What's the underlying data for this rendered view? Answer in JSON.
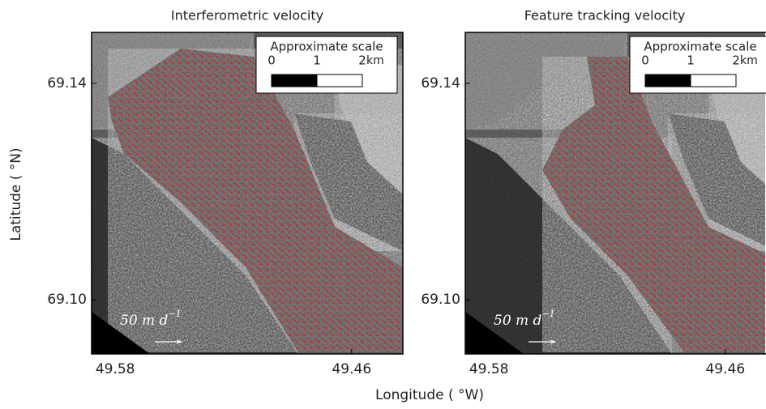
{
  "xlabel": "Longitude ( °W)",
  "ylabel": "Latitude ( °N)",
  "chart_data": [
    {
      "type": "image",
      "title": "Interferometric velocity",
      "xlim": [
        49.592,
        49.434
      ],
      "ylim": [
        69.09,
        69.1494
      ],
      "xticks": [
        49.58,
        49.46
      ],
      "yticks": [
        69.14,
        {
          "value": 69.1,
          "label": "69.10"
        }
      ],
      "scale_bar": {
        "title": "Approximate scale",
        "ticks": [
          0,
          1,
          2
        ],
        "unit": "km"
      },
      "arrow_scale": {
        "text": "50 m d",
        "exponent": "−1"
      }
    },
    {
      "type": "image",
      "title": "Feature tracking velocity",
      "xlim": [
        49.592,
        49.434
      ],
      "ylim": [
        69.09,
        69.1494
      ],
      "xticks": [
        49.58,
        49.46
      ],
      "yticks": [
        69.14,
        {
          "value": 69.1,
          "label": "69.10"
        }
      ],
      "scale_bar": {
        "title": "Approximate scale",
        "ticks": [
          0,
          1,
          2
        ],
        "unit": "km"
      },
      "arrow_scale": {
        "text": "50 m d",
        "exponent": "−1"
      }
    }
  ]
}
